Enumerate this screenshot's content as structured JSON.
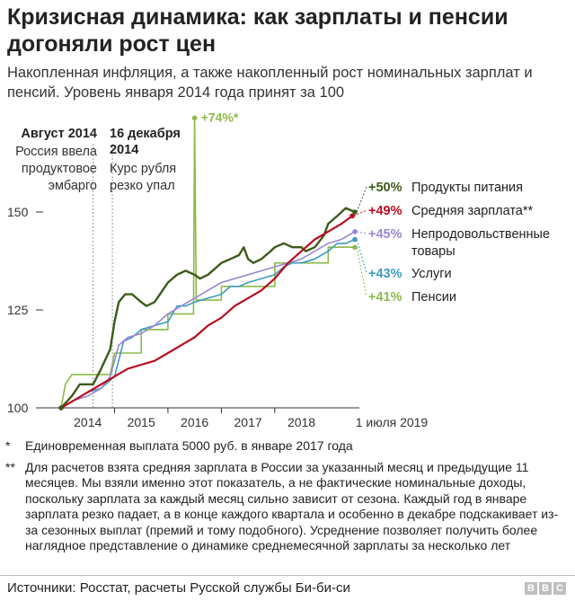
{
  "header": {
    "title": "Кризисная динамика: как зарплаты и пенсии догоняли рост цен",
    "subtitle": "Накопленная инфляция, а также накопленный рост номинальных зарплат и пенсий. Уровень января 2014 года принят за 100"
  },
  "annotations": {
    "aug2014_title": "Август 2014",
    "aug2014_line1": "Россия ввела",
    "aug2014_line2": "продуктовое",
    "aug2014_line3": "эмбарго",
    "dec2014_title1": "16 декабря",
    "dec2014_title2": "2014",
    "dec2014_line1": "Курс рубля",
    "dec2014_line2": "резко упал",
    "spike_label": "+74%*"
  },
  "series_labels": {
    "food_value": "+50%",
    "food_name": "Продукты питания",
    "wage_value": "+49%",
    "wage_name": "Средняя зарплата**",
    "nonfood_value": "+45%",
    "nonfood_name1": "Непродовольственные",
    "nonfood_name2": "товары",
    "services_value": "+43%",
    "services_name": "Услуги",
    "pensions_value": "+41%",
    "pensions_name": "Пенсии"
  },
  "colors": {
    "food": "#3d5a1a",
    "wage": "#b80d1f",
    "nonfood": "#9a86d2",
    "services": "#3d9bbf",
    "pensions": "#8bba4a"
  },
  "notes": {
    "n1_mark": "*",
    "n1_text": "Единовременная выплата 5000 руб. в январе 2017 года",
    "n2_mark": "**",
    "n2_text": "Для расчетов взята средняя зарплата в России за указанный месяц и предыдущие 11 месяцев. Мы взяли именно этот показатель, а не фактические номинальные доходы, поскольку зарплата за каждый месяц сильно зависит от сезона. Каждый год в январе зарплата резко падает, а в конце каждого квартала и особенно в декабре подскакивает из-за сезонных выплат (премий и тому подобного). Усреднение позволяет получить более наглядное представление о динамике среднемесячной зарплаты за несколько лет"
  },
  "footer": {
    "source": "Источники: Росстат, расчеты Русской службы Би-би-си",
    "logo": [
      "B",
      "B",
      "C"
    ]
  },
  "chart_data": {
    "type": "line",
    "title": "Кризисная динамика: как зарплаты и пенсии догоняли рост цен",
    "subtitle": "Накопленная инфляция, а также накопленный рост номинальных зарплат и пенсий. Уровень января 2014 года принят за 100",
    "xlabel": "",
    "ylabel": "",
    "x_range": [
      2014.0,
      2019.5
    ],
    "ylim": [
      100,
      174
    ],
    "y_ticks": [
      100,
      125,
      150
    ],
    "x_ticks": [
      {
        "label": "2014",
        "x": 2014.5
      },
      {
        "label": "2015",
        "x": 2015.5
      },
      {
        "label": "2016",
        "x": 2016.5
      },
      {
        "label": "2017",
        "x": 2017.5
      },
      {
        "label": "2018",
        "x": 2018.5
      },
      {
        "label": "1 июля 2019",
        "x": 2019.5
      }
    ],
    "event_lines": [
      2014.6,
      2014.96
    ],
    "grid": false,
    "legend": "right (direct labels at line ends)",
    "series": [
      {
        "name": "Продукты питания",
        "key": "food",
        "points": [
          [
            2014.0,
            100
          ],
          [
            2014.2,
            103
          ],
          [
            2014.35,
            106
          ],
          [
            2014.5,
            106
          ],
          [
            2014.6,
            106
          ],
          [
            2014.75,
            110
          ],
          [
            2014.92,
            115
          ],
          [
            2015.0,
            122
          ],
          [
            2015.08,
            127
          ],
          [
            2015.2,
            129
          ],
          [
            2015.33,
            129
          ],
          [
            2015.5,
            127
          ],
          [
            2015.6,
            126
          ],
          [
            2015.75,
            127
          ],
          [
            2015.9,
            130
          ],
          [
            2016.0,
            132
          ],
          [
            2016.17,
            134
          ],
          [
            2016.33,
            135
          ],
          [
            2016.5,
            134
          ],
          [
            2016.6,
            133
          ],
          [
            2016.75,
            134
          ],
          [
            2016.92,
            136
          ],
          [
            2017.0,
            137
          ],
          [
            2017.17,
            138
          ],
          [
            2017.33,
            139
          ],
          [
            2017.42,
            141
          ],
          [
            2017.5,
            138
          ],
          [
            2017.6,
            137
          ],
          [
            2017.75,
            138
          ],
          [
            2017.92,
            140
          ],
          [
            2018.0,
            141
          ],
          [
            2018.17,
            142
          ],
          [
            2018.33,
            141
          ],
          [
            2018.5,
            141
          ],
          [
            2018.58,
            140
          ],
          [
            2018.75,
            141
          ],
          [
            2018.92,
            144
          ],
          [
            2019.0,
            147
          ],
          [
            2019.17,
            149
          ],
          [
            2019.33,
            151
          ],
          [
            2019.5,
            150
          ]
        ]
      },
      {
        "name": "Средняя зарплата**",
        "key": "wage",
        "points": [
          [
            2014.0,
            100
          ],
          [
            2014.25,
            102
          ],
          [
            2014.5,
            104
          ],
          [
            2014.75,
            106
          ],
          [
            2015.0,
            108
          ],
          [
            2015.25,
            110
          ],
          [
            2015.5,
            111
          ],
          [
            2015.75,
            112
          ],
          [
            2016.0,
            114
          ],
          [
            2016.25,
            116
          ],
          [
            2016.5,
            118
          ],
          [
            2016.75,
            121
          ],
          [
            2017.0,
            123
          ],
          [
            2017.25,
            126
          ],
          [
            2017.5,
            128
          ],
          [
            2017.75,
            130
          ],
          [
            2018.0,
            133
          ],
          [
            2018.25,
            137
          ],
          [
            2018.5,
            140
          ],
          [
            2018.75,
            143
          ],
          [
            2019.0,
            145
          ],
          [
            2019.25,
            147
          ],
          [
            2019.45,
            149
          ]
        ]
      },
      {
        "name": "Непродовольственные товары",
        "key": "nonfood",
        "points": [
          [
            2014.0,
            100
          ],
          [
            2014.25,
            102
          ],
          [
            2014.5,
            103
          ],
          [
            2014.75,
            105
          ],
          [
            2014.92,
            108
          ],
          [
            2015.0,
            112
          ],
          [
            2015.08,
            116
          ],
          [
            2015.25,
            118
          ],
          [
            2015.5,
            119
          ],
          [
            2015.75,
            121
          ],
          [
            2016.0,
            124
          ],
          [
            2016.25,
            126
          ],
          [
            2016.5,
            128
          ],
          [
            2016.75,
            130
          ],
          [
            2017.0,
            132
          ],
          [
            2017.25,
            133
          ],
          [
            2017.5,
            134
          ],
          [
            2017.75,
            135
          ],
          [
            2018.0,
            136
          ],
          [
            2018.25,
            137
          ],
          [
            2018.5,
            138
          ],
          [
            2018.75,
            140
          ],
          [
            2019.0,
            142
          ],
          [
            2019.25,
            143
          ],
          [
            2019.5,
            145
          ]
        ]
      },
      {
        "name": "Услуги",
        "key": "services",
        "points": [
          [
            2014.0,
            100
          ],
          [
            2014.25,
            102
          ],
          [
            2014.5,
            104
          ],
          [
            2014.75,
            105
          ],
          [
            2015.0,
            108
          ],
          [
            2015.17,
            117
          ],
          [
            2015.33,
            118
          ],
          [
            2015.5,
            120
          ],
          [
            2015.75,
            121
          ],
          [
            2016.0,
            122
          ],
          [
            2016.17,
            126
          ],
          [
            2016.33,
            126
          ],
          [
            2016.5,
            127
          ],
          [
            2016.75,
            128
          ],
          [
            2017.0,
            129
          ],
          [
            2017.17,
            131
          ],
          [
            2017.33,
            131
          ],
          [
            2017.5,
            132
          ],
          [
            2017.75,
            133
          ],
          [
            2018.0,
            134
          ],
          [
            2018.17,
            136
          ],
          [
            2018.33,
            137
          ],
          [
            2018.5,
            137
          ],
          [
            2018.75,
            138
          ],
          [
            2019.0,
            140
          ],
          [
            2019.17,
            142
          ],
          [
            2019.33,
            142
          ],
          [
            2019.5,
            143
          ]
        ]
      },
      {
        "name": "Пенсии",
        "key": "pensions",
        "points": [
          [
            2014.0,
            100
          ],
          [
            2014.08,
            106
          ],
          [
            2014.2,
            108.5
          ],
          [
            2014.92,
            108.5
          ],
          [
            2015.0,
            114
          ],
          [
            2015.5,
            114
          ],
          [
            2015.5,
            120
          ],
          [
            2016.0,
            120
          ],
          [
            2016.0,
            124
          ],
          [
            2016.48,
            124
          ],
          [
            2016.5,
            174
          ],
          [
            2016.53,
            127.5
          ],
          [
            2017.0,
            127.5
          ],
          [
            2017.0,
            131
          ],
          [
            2018.0,
            131
          ],
          [
            2018.0,
            137
          ],
          [
            2019.0,
            137
          ],
          [
            2019.0,
            141
          ],
          [
            2019.5,
            141
          ]
        ]
      }
    ],
    "end_labels": [
      {
        "series": "Продукты питания",
        "text": "+50%"
      },
      {
        "series": "Средняя зарплата**",
        "text": "+49%"
      },
      {
        "series": "Непродовольственные товары",
        "text": "+45%"
      },
      {
        "series": "Услуги",
        "text": "+43%"
      },
      {
        "series": "Пенсии",
        "text": "+41%"
      }
    ],
    "annotations": [
      "Август 2014 — Россия ввела продуктовое эмбарго",
      "16 декабря 2014 — Курс рубля резко упал",
      "+74%*"
    ]
  }
}
